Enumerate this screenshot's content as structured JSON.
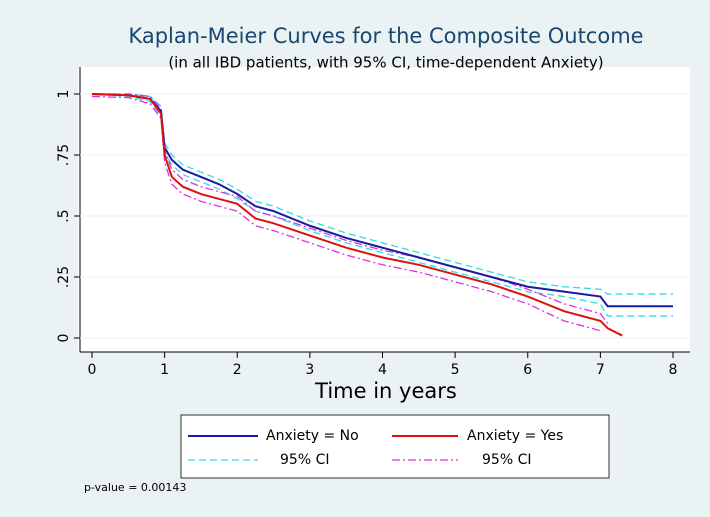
{
  "chart_data": {
    "type": "line",
    "title": "Kaplan-Meier Curves for the Composite Outcome",
    "subtitle": "(in all IBD patients, with 95% CI, time-dependent Anxiety)",
    "x_label": "Time in years",
    "annotation": "p-value = 0.00143",
    "x": [
      0,
      0.5,
      0.8,
      0.95,
      1,
      1.1,
      1.25,
      1.5,
      1.75,
      2,
      2.25,
      2.5,
      3,
      3.5,
      4,
      4.5,
      5,
      5.5,
      6,
      6.5,
      7,
      7.1,
      7.3,
      8
    ],
    "series": [
      {
        "name": "Anxiety = No",
        "color": "#1a1aa6",
        "line_style": "solid",
        "values": [
          1,
          0.995,
          0.98,
          0.93,
          0.78,
          0.73,
          0.69,
          0.66,
          0.63,
          0.59,
          0.54,
          0.52,
          0.46,
          0.41,
          0.37,
          0.33,
          0.29,
          0.25,
          0.21,
          0.19,
          0.17,
          0.13,
          0.13,
          0.13
        ]
      },
      {
        "name": "Anxiety = Yes",
        "color": "#dd1111",
        "line_style": "solid",
        "values": [
          1,
          0.995,
          0.98,
          0.92,
          0.75,
          0.66,
          0.62,
          0.59,
          0.57,
          0.55,
          0.49,
          0.47,
          0.42,
          0.37,
          0.33,
          0.3,
          0.26,
          0.22,
          0.17,
          0.11,
          0.07,
          0.04,
          0.01,
          null
        ]
      },
      {
        "name": "95% CI",
        "color": "#33dddd",
        "line_style": "dashed",
        "upper": [
          1,
          1,
          0.99,
          0.95,
          0.8,
          0.75,
          0.71,
          0.68,
          0.65,
          0.61,
          0.56,
          0.54,
          0.48,
          0.43,
          0.39,
          0.35,
          0.31,
          0.27,
          0.23,
          0.21,
          0.2,
          0.18,
          0.18,
          0.18
        ],
        "lower": [
          1,
          0.99,
          0.97,
          0.91,
          0.76,
          0.71,
          0.67,
          0.64,
          0.61,
          0.57,
          0.52,
          0.5,
          0.44,
          0.39,
          0.35,
          0.31,
          0.27,
          0.23,
          0.19,
          0.17,
          0.14,
          0.09,
          0.09,
          0.09
        ]
      },
      {
        "name": "95% CI",
        "color": "#dd33dd",
        "line_style": "dashdot",
        "upper": [
          1,
          1,
          0.99,
          0.94,
          0.77,
          0.69,
          0.65,
          0.62,
          0.6,
          0.58,
          0.52,
          0.5,
          0.45,
          0.4,
          0.36,
          0.33,
          0.29,
          0.25,
          0.2,
          0.14,
          0.1,
          0.06,
          null,
          null
        ],
        "lower": [
          0.99,
          0.985,
          0.96,
          0.9,
          0.72,
          0.63,
          0.59,
          0.56,
          0.54,
          0.52,
          0.46,
          0.44,
          0.39,
          0.34,
          0.3,
          0.27,
          0.23,
          0.19,
          0.14,
          0.07,
          0.03,
          null,
          null,
          null
        ]
      }
    ],
    "xlim": [
      0,
      8
    ],
    "xticks": [
      0,
      1,
      2,
      3,
      4,
      5,
      6,
      7,
      8
    ],
    "ylim": [
      0,
      1
    ],
    "yticks": [
      0,
      {
        "value": 0.25,
        "label": ".25"
      },
      {
        "value": 0.5,
        "label": ".5"
      },
      {
        "value": 0.75,
        "label": ".75"
      },
      1
    ],
    "grid": true,
    "legend": "bottom"
  }
}
